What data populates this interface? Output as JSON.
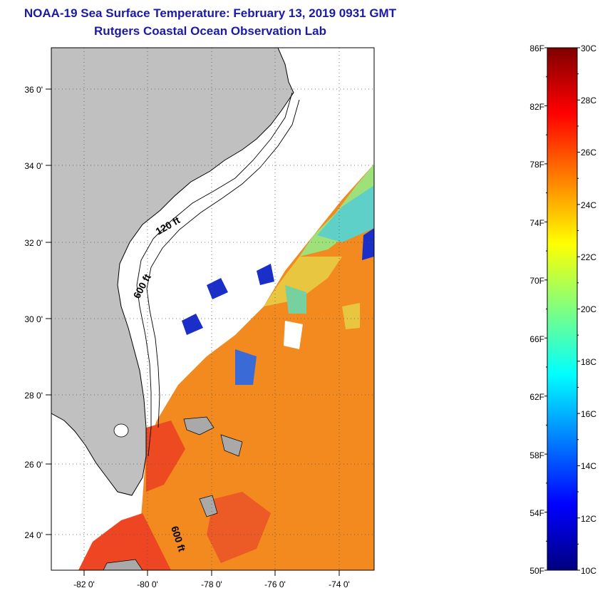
{
  "title": "NOAA-19 Sea Surface Temperature:  February 13, 2019 0931 GMT",
  "subtitle": "Rutgers Coastal Ocean Observation Lab",
  "map": {
    "lon_range": [
      -83,
      -73
    ],
    "lat_range": [
      23,
      37
    ],
    "x_ticks": [
      "-82 0'",
      "-80 0'",
      "-78 0'",
      "-76 0'",
      "-74 0'"
    ],
    "y_ticks": [
      "24 0'",
      "26 0'",
      "28 0'",
      "30 0'",
      "32 0'",
      "34 0'",
      "36 0'"
    ],
    "contour_labels": [
      "120 ft",
      "600 ft",
      "600 ft"
    ],
    "land_color": "#c0c0c0",
    "grid": "dotted"
  },
  "colorbar": {
    "fahrenheit_labels": [
      "86F",
      "82F",
      "78F",
      "74F",
      "70F",
      "66F",
      "62F",
      "58F",
      "54F",
      "50F"
    ],
    "celsius_labels": [
      "30C",
      "28C",
      "26C",
      "24C",
      "22C",
      "20C",
      "18C",
      "16C",
      "14C",
      "12C",
      "10C"
    ],
    "range_c": [
      10,
      30
    ],
    "colormap": "jet"
  }
}
